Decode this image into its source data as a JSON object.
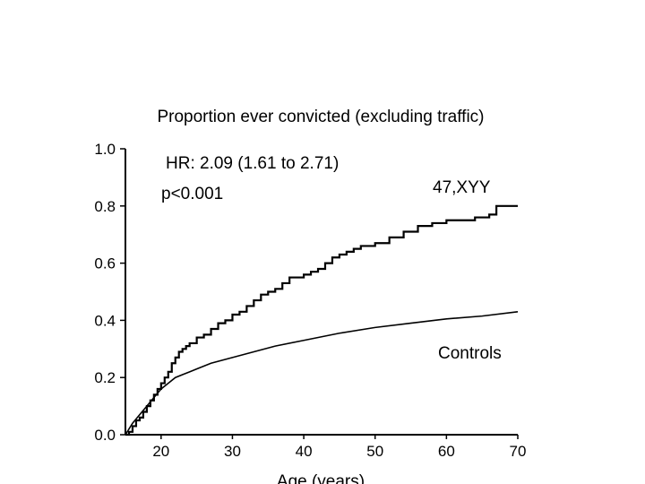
{
  "chart_data": {
    "type": "line",
    "title": "Proportion ever convicted (excluding traffic)",
    "xlabel": "Age (years)",
    "ylabel": "",
    "xlim": [
      15,
      70
    ],
    "ylim": [
      0,
      1.0
    ],
    "x_ticks": [
      20,
      30,
      40,
      50,
      60,
      70
    ],
    "y_ticks": [
      0.0,
      0.2,
      0.4,
      0.6,
      0.8,
      1.0
    ],
    "y_tick_labels": [
      "0.0",
      "0.2",
      "0.4",
      "0.6",
      "0.8",
      "1.0"
    ],
    "grid": false,
    "annotations": {
      "hr": "HR: 2.09 (1.61 to 2.71)",
      "p": "p<0.001"
    },
    "series": [
      {
        "name": "47,XYY",
        "style": "step",
        "x": [
          15,
          15.5,
          16,
          16.5,
          17,
          17.5,
          18,
          18.5,
          19,
          19.5,
          20,
          20.5,
          21,
          21.5,
          22,
          22.5,
          23,
          23.5,
          24,
          25,
          26,
          27,
          28,
          29,
          30,
          31,
          32,
          33,
          34,
          35,
          36,
          37,
          38,
          39,
          40,
          41,
          42,
          43,
          44,
          45,
          46,
          47,
          48,
          50,
          52,
          54,
          56,
          58,
          60,
          62,
          64,
          66,
          67,
          70
        ],
        "values": [
          0.0,
          0.01,
          0.03,
          0.05,
          0.06,
          0.08,
          0.1,
          0.12,
          0.14,
          0.16,
          0.18,
          0.2,
          0.22,
          0.25,
          0.27,
          0.29,
          0.3,
          0.31,
          0.32,
          0.34,
          0.35,
          0.37,
          0.39,
          0.4,
          0.42,
          0.43,
          0.45,
          0.47,
          0.49,
          0.5,
          0.51,
          0.53,
          0.55,
          0.55,
          0.56,
          0.57,
          0.58,
          0.6,
          0.62,
          0.63,
          0.64,
          0.65,
          0.66,
          0.67,
          0.69,
          0.71,
          0.73,
          0.74,
          0.75,
          0.75,
          0.76,
          0.77,
          0.8,
          0.8
        ]
      },
      {
        "name": "Controls",
        "style": "smooth",
        "x": [
          15,
          16,
          17,
          18,
          19,
          20,
          21,
          22,
          23,
          24,
          25,
          27,
          30,
          33,
          36,
          40,
          45,
          50,
          55,
          60,
          65,
          70
        ],
        "values": [
          0.0,
          0.04,
          0.07,
          0.1,
          0.13,
          0.16,
          0.18,
          0.2,
          0.21,
          0.22,
          0.23,
          0.25,
          0.27,
          0.29,
          0.31,
          0.33,
          0.355,
          0.375,
          0.39,
          0.405,
          0.415,
          0.43
        ]
      }
    ]
  }
}
